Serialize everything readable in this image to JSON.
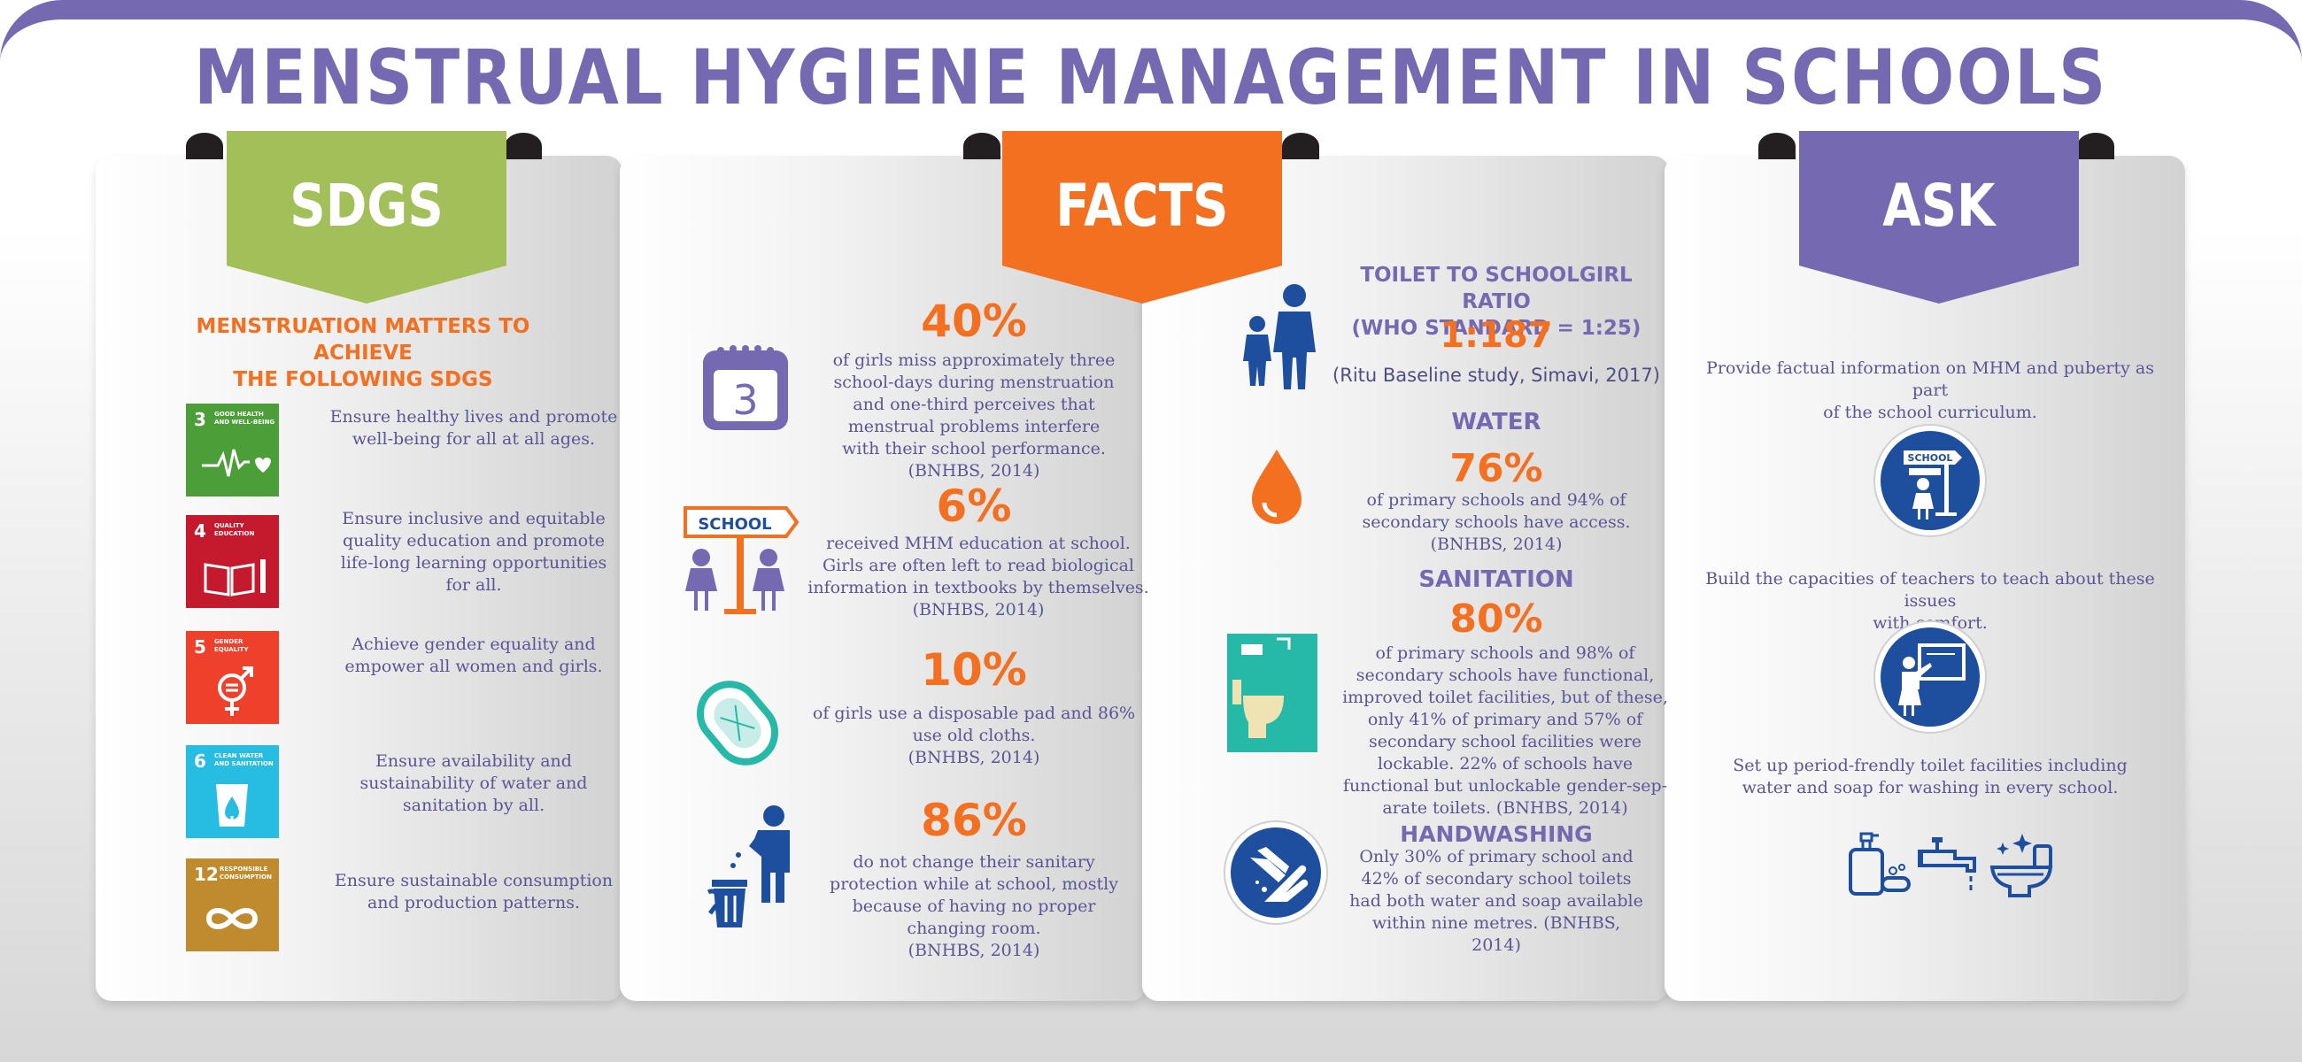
{
  "title": "MENSTRUAL HYGIENE MANAGEMENT IN SCHOOLS",
  "colors": {
    "purple": "#7569b2",
    "green": "#a3bf5a",
    "orange": "#f37021",
    "blue": "#1d4f9e"
  },
  "sdgs": {
    "banner": "SDGS",
    "heading_line1": "MENSTRUATION MATTERS TO ACHIEVE",
    "heading_line2": "THE FOLLOWING SDGS",
    "goals": [
      {
        "num": "3",
        "label_l1": "GOOD HEALTH",
        "label_l2": "AND WELL-BEING",
        "icon": "heartbeat-icon",
        "color": "#4c9f38",
        "text_l1": "Ensure healthy lives and promote",
        "text_l2": "well-being for all at all ages."
      },
      {
        "num": "4",
        "label_l1": "QUALITY",
        "label_l2": "EDUCATION",
        "icon": "book-pencil-icon",
        "color": "#c5192d",
        "text_l1": "Ensure inclusive and equitable",
        "text_l2": "quality education and promote",
        "text_l3": "life-long learning opportunities",
        "text_l4": "for all."
      },
      {
        "num": "5",
        "label_l1": "GENDER",
        "label_l2": "EQUALITY",
        "icon": "gender-equality-icon",
        "color": "#ef402b",
        "text_l1": "Achieve gender equality and",
        "text_l2": "empower all women and girls."
      },
      {
        "num": "6",
        "label_l1": "CLEAN WATER",
        "label_l2": "AND SANITATION",
        "icon": "water-glass-icon",
        "color": "#27bde2",
        "text_l1": "Ensure availability and",
        "text_l2": "sustainability of water and",
        "text_l3": "sanitation by all."
      },
      {
        "num": "12",
        "label_l1": "RESPONSIBLE",
        "label_l2": "CONSUMPTION",
        "icon": "infinity-icon",
        "color": "#bf8b2e",
        "text_l1": "Ensure sustainable consumption",
        "text_l2": "and production patterns."
      }
    ]
  },
  "facts": {
    "banner": "FACTS",
    "items": [
      {
        "pct": "40%",
        "icon": "calendar-icon",
        "calendar_day": "3",
        "l1": "of girls miss approximately three",
        "l2": "school-days during menstruation",
        "l3": "and one-third perceives that",
        "l4": "menstrual problems interfere",
        "l5": "with their school performance.",
        "l6": "(BNHBS, 2014)"
      },
      {
        "pct": "6%",
        "icon": "school-girls-icon",
        "sign": "SCHOOL",
        "l1": "received MHM education at school.",
        "l2": "Girls are often left to read biological",
        "l3": "information in textbooks by themselves.",
        "l4": "(BNHBS, 2014)"
      },
      {
        "pct": "10%",
        "icon": "sanitary-pad-icon",
        "l1": "of girls use a disposable pad and 86%",
        "l2": "use old cloths.",
        "l3": "(BNHBS, 2014)"
      },
      {
        "pct": "86%",
        "icon": "trash-bin-person-icon",
        "l1": "do not change their sanitary",
        "l2": "protection while at school, mostly",
        "l3": "because of having no proper",
        "l4": "changing room.",
        "l5": "(BNHBS, 2014)"
      }
    ],
    "ratio": {
      "h1": "TOILET TO SCHOOLGIRL RATIO",
      "h2": "(WHO STANDARD = 1:25)",
      "value": "1:187",
      "source": "(Ritu Baseline study, Simavi, 2017)",
      "icon": "adult-child-icon"
    },
    "water": {
      "heading": "WATER",
      "pct": "76%",
      "l1": "of primary schools and 94% of",
      "l2": "secondary schools have access.",
      "l3": "(BNHBS, 2014)",
      "icon": "water-drop-icon"
    },
    "sanitation": {
      "heading": "SANITATION",
      "pct": "80%",
      "l1": "of primary schools and 98% of",
      "l2": "secondary schools have functional,",
      "l3": "improved toilet facilities, but of these,",
      "l4": "only 41% of primary and 57% of",
      "l5": "secondary school facilities were",
      "l6": "lockable. 22% of schools have",
      "l7": "functional but unlockable gender-sep-",
      "l8": "arate toilets. (BNHBS, 2014)",
      "icon": "toilet-icon"
    },
    "handwashing": {
      "heading": "HANDWASHING",
      "l1": "Only 30% of primary school and",
      "l2": "42% of secondary school toilets",
      "l3": "had both water and soap available",
      "l4": "within nine metres. (BNHBS,",
      "l5": "2014)",
      "icon": "handwashing-icon"
    }
  },
  "ask": {
    "banner": "ASK",
    "items": [
      {
        "l1": "Provide factual information on MHM and puberty as part",
        "l2": "of the school curriculum.",
        "icon": "school-girl-sign-icon",
        "sign": "SCHOOL"
      },
      {
        "l1": "Build the capacities of teachers to teach about these issues",
        "l2": "with comfort.",
        "icon": "teacher-board-icon"
      },
      {
        "l1": "Set up period-frendly toilet facilities including",
        "l2": "water and soap for washing in every school.",
        "icons": [
          "soap-dispenser-icon",
          "tap-icon",
          "toilet-clean-icon"
        ]
      }
    ]
  }
}
